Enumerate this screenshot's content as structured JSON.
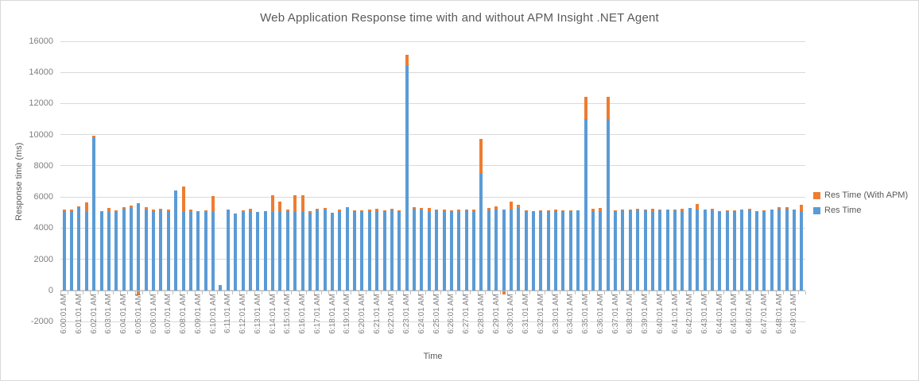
{
  "window": {
    "background": "#ffffff",
    "border_color": "#d9d9d9"
  },
  "chart_data": {
    "type": "bar",
    "stacked": true,
    "title": "Web Application Response time with and without APM Insight .NET Agent",
    "xlabel": "Time",
    "ylabel": "Response time  (ms)",
    "ylim": [
      -2000,
      16000
    ],
    "ytick_step": 2000,
    "grid": true,
    "legend_position": "right",
    "bars_per_label": 2,
    "x_labels": [
      "6:00:01 AM",
      "6:01:01 AM",
      "6:02:01 AM",
      "6:03:01 AM",
      "6:04:01 AM",
      "6:05:01 AM",
      "6:06:01 AM",
      "6:07:01 AM",
      "6:08:01 AM",
      "6:09:01 AM",
      "6:10:01 AM",
      "6:11:01 AM",
      "6:12:01 AM",
      "6:13:01 AM",
      "6:14:01 AM",
      "6:15:01 AM",
      "6:16:01 AM",
      "6:17:01 AM",
      "6:18:01 AM",
      "6:19:01 AM",
      "6:20:01 AM",
      "6:21:01 AM",
      "6:22:01 AM",
      "6:23:01 AM",
      "6:24:01 AM",
      "6:25:01 AM",
      "6:26:01 AM",
      "6:27:01 AM",
      "6:28:01 AM",
      "6:29:01 AM",
      "6:30:01 AM",
      "6:31:01 AM",
      "6:32:01 AM",
      "6:33:01 AM",
      "6:34:01 AM",
      "6:35:01 AM",
      "6:36:01 AM",
      "6:37:01 AM",
      "6:38:01 AM",
      "6:39:01 AM",
      "6:40:01 AM",
      "6:41:01 AM",
      "6:42:01 AM",
      "6:43:01 AM",
      "6:44:01 AM",
      "6:45:01 AM",
      "6:46:01 AM",
      "6:47:01 AM",
      "6:48:01 AM",
      "6:49:01 AM"
    ],
    "series": [
      {
        "name": "Res Time",
        "color": "#5b9bd5",
        "values": [
          5100,
          5100,
          5350,
          5050,
          9830,
          5050,
          5050,
          5050,
          5250,
          5300,
          5600,
          5200,
          5100,
          5150,
          5100,
          6420,
          5050,
          5050,
          5050,
          5050,
          5050,
          300,
          5200,
          4950,
          5050,
          5100,
          5050,
          5100,
          5050,
          5100,
          5100,
          5050,
          5050,
          5000,
          5150,
          5200,
          5000,
          5100,
          5350,
          5100,
          5100,
          5100,
          5100,
          5100,
          5130,
          5080,
          14420,
          5250,
          5200,
          5050,
          5150,
          5100,
          5100,
          5050,
          5150,
          5100,
          7475,
          5130,
          5180,
          5200,
          5180,
          5280,
          5080,
          5080,
          5080,
          5080,
          5080,
          5080,
          5080,
          5130,
          11000,
          5110,
          5080,
          11000,
          5100,
          5130,
          5130,
          5160,
          5130,
          5100,
          5130,
          5200,
          5130,
          5110,
          5280,
          5180,
          5180,
          5150,
          5110,
          5100,
          5100,
          5210,
          5150,
          5100,
          5080,
          5210,
          5250,
          5250,
          5200,
          5110
        ]
      },
      {
        "name": "Res Time (With APM)",
        "color": "#ed7d31",
        "values": [
          100,
          80,
          60,
          600,
          100,
          60,
          250,
          100,
          100,
          120,
          -250,
          150,
          100,
          100,
          80,
          0,
          1625,
          150,
          60,
          100,
          1000,
          60,
          0,
          0,
          100,
          150,
          0,
          0,
          1050,
          600,
          80,
          1050,
          1050,
          80,
          80,
          100,
          0,
          80,
          0,
          60,
          60,
          80,
          120,
          60,
          100,
          80,
          700,
          100,
          100,
          250,
          60,
          80,
          60,
          150,
          60,
          80,
          2250,
          170,
          190,
          -200,
          520,
          240,
          60,
          0,
          60,
          60,
          130,
          60,
          60,
          0,
          1430,
          155,
          200,
          1430,
          60,
          80,
          80,
          100,
          80,
          120,
          60,
          0,
          80,
          120,
          0,
          360,
          0,
          100,
          0,
          60,
          60,
          0,
          100,
          0,
          80,
          0,
          80,
          100,
          0,
          400
        ]
      }
    ],
    "colors": {
      "title_text": "#595959",
      "axis_title_text": "#595959",
      "tick_label_text": "#7f7f7f",
      "gridline": "#d9d9d9",
      "axis_line": "#bfbfbf"
    }
  }
}
